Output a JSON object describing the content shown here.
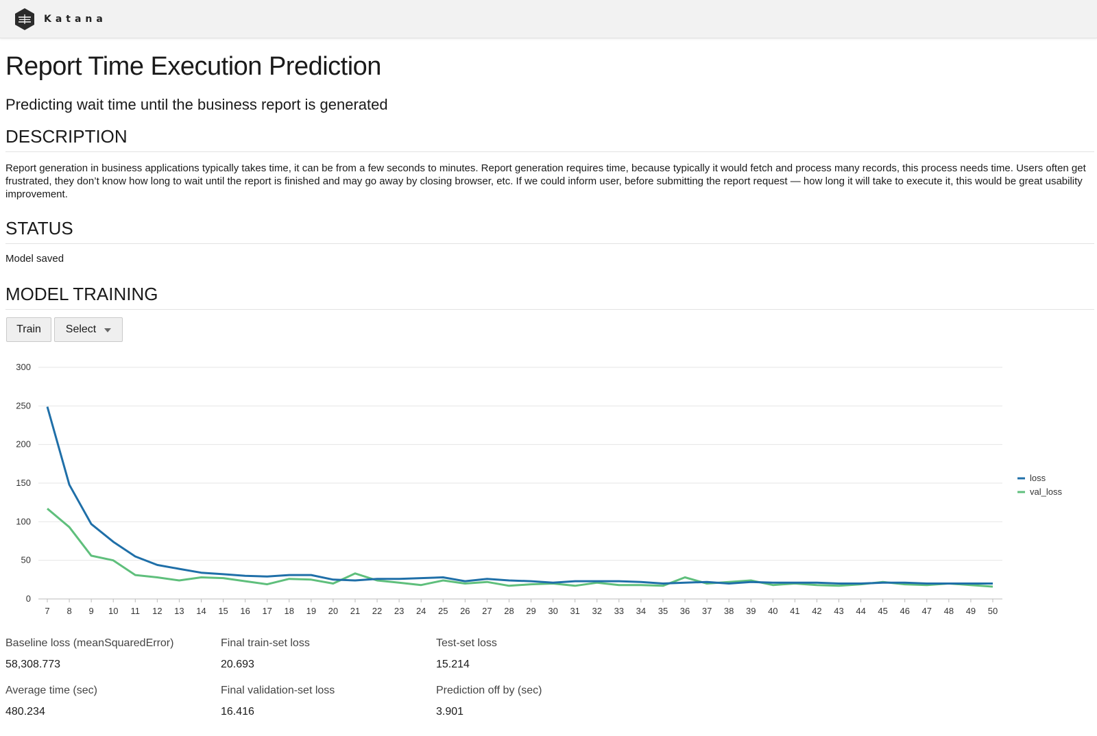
{
  "app": {
    "brand_name": "Katana",
    "brand_icon": "katana-logo-icon"
  },
  "page": {
    "title": "Report Time Execution Prediction",
    "subtitle": "Predicting wait time until the business report is generated"
  },
  "description": {
    "heading": "DESCRIPTION",
    "text": "Report generation in business applications typically takes time, it can be from a few seconds to minutes. Report generation requires time, because typically it would fetch and process many records, this process needs time. Users often get frustrated, they don’t know how long to wait until the report is finished and may go away by closing browser, etc. If we could inform user, before submitting the report request — how long it will take to execute it, this would be great usability improvement."
  },
  "status": {
    "heading": "STATUS",
    "text": "Model saved"
  },
  "training": {
    "heading": "MODEL TRAINING",
    "train_label": "Train",
    "select_label": "Select"
  },
  "chart_data": {
    "type": "line",
    "title": "",
    "xlabel": "",
    "ylabel": "",
    "x": [
      7,
      8,
      9,
      10,
      11,
      12,
      13,
      14,
      15,
      16,
      17,
      18,
      19,
      20,
      21,
      22,
      23,
      24,
      25,
      26,
      27,
      28,
      29,
      30,
      31,
      32,
      33,
      34,
      35,
      36,
      37,
      38,
      39,
      40,
      41,
      42,
      43,
      44,
      45,
      46,
      47,
      48,
      49,
      50
    ],
    "ylim": [
      0,
      300
    ],
    "yticks": [
      0,
      50,
      100,
      150,
      200,
      250,
      300
    ],
    "legend_position": "right",
    "colors": {
      "loss": "#1f6fa8",
      "val_loss": "#5fbf7c"
    },
    "series": [
      {
        "name": "loss",
        "values": [
          249,
          148,
          97,
          74,
          55,
          44,
          39,
          34,
          32,
          30,
          29,
          31,
          31,
          25,
          24,
          26,
          26,
          27,
          28,
          23,
          26,
          24,
          23,
          21,
          23,
          23,
          23,
          22,
          20,
          21,
          22,
          20,
          22,
          21,
          21,
          21,
          20,
          20,
          21,
          21,
          20,
          20,
          20,
          20
        ]
      },
      {
        "name": "val_loss",
        "values": [
          117,
          93,
          56,
          50,
          31,
          28,
          24,
          28,
          27,
          23,
          19,
          26,
          25,
          20,
          33,
          24,
          21,
          18,
          24,
          20,
          22,
          17,
          19,
          20,
          17,
          21,
          18,
          18,
          17,
          28,
          20,
          22,
          24,
          18,
          20,
          18,
          17,
          19,
          22,
          19,
          18,
          20,
          18,
          16
        ]
      }
    ]
  },
  "metrics": {
    "baseline_label": "Baseline loss (meanSquaredError)",
    "baseline_value": "58,308.773",
    "final_train_label": "Final train-set loss",
    "final_train_value": "20.693",
    "test_label": "Test-set loss",
    "test_value": "15.214",
    "avg_time_label": "Average time (sec)",
    "avg_time_value": "480.234",
    "final_val_label": "Final validation-set loss",
    "final_val_value": "16.416",
    "pred_off_label": "Prediction off by (sec)",
    "pred_off_value": "3.901"
  }
}
